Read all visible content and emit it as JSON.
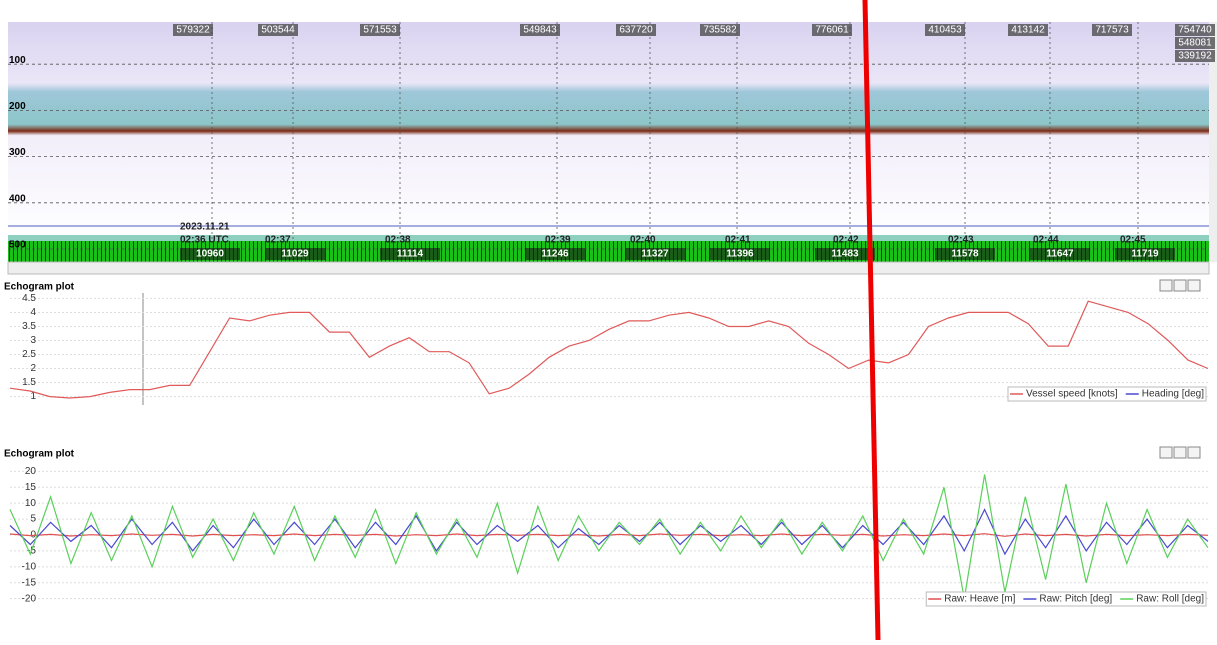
{
  "echogram": {
    "depth_ticks": [
      100,
      200,
      300,
      400,
      500
    ],
    "ylim": [
      0,
      500
    ],
    "date": "2023.11.21",
    "times": [
      "02:36 UTC",
      "02:37",
      "02:38",
      "02:39",
      "02:40",
      "02:41",
      "02:42",
      "02:43",
      "02:44",
      "02:45"
    ],
    "pings": [
      "10960",
      "11029",
      "11114",
      "11246",
      "11327",
      "11396",
      "11483",
      "11578",
      "11647",
      "11719"
    ],
    "top_labels": [
      "579322",
      "503544",
      "571553",
      "549843",
      "637720",
      "735582",
      "776061",
      "410453",
      "413142",
      "717573",
      "754740",
      "548081",
      "339192"
    ]
  },
  "chart_data": [
    {
      "type": "line",
      "title": "Echogram plot",
      "ylim": [
        0.7,
        4.8
      ],
      "yticks": [
        1,
        1.5,
        2,
        2.5,
        3,
        3.5,
        4,
        4.5
      ],
      "series": [
        {
          "name": "Vessel speed [knots]",
          "color": "#e05a5a",
          "values": [
            1.3,
            1.2,
            1.0,
            0.95,
            1.0,
            1.15,
            1.25,
            1.25,
            1.4,
            1.4,
            2.6,
            3.8,
            3.7,
            3.9,
            4.0,
            4.0,
            3.3,
            3.3,
            2.4,
            2.8,
            3.1,
            2.6,
            2.6,
            2.2,
            1.1,
            1.3,
            1.8,
            2.4,
            2.8,
            3.0,
            3.4,
            3.7,
            3.7,
            3.9,
            4.0,
            3.8,
            3.5,
            3.5,
            3.7,
            3.5,
            2.9,
            2.5,
            2.0,
            2.3,
            2.2,
            2.5,
            3.5,
            3.8,
            4.0,
            4.0,
            4.0,
            3.6,
            2.8,
            2.8,
            4.4,
            4.2,
            4.0,
            3.6,
            3.0,
            2.3,
            2.0
          ]
        },
        {
          "name": "Heading [deg]",
          "color": "#4a4ad0",
          "values": [
            null,
            null,
            null
          ]
        }
      ]
    },
    {
      "type": "line",
      "title": "Echogram plot",
      "ylim": [
        -22,
        22
      ],
      "yticks": [
        20,
        15,
        10,
        5,
        0,
        -5,
        -10,
        -15,
        -20
      ],
      "series": [
        {
          "name": "Raw: Heave [m]",
          "color": "#e05050",
          "values": [
            0.3,
            -0.2,
            0.2,
            -0.3,
            0.1,
            -0.2,
            0.3,
            -0.1,
            0.2,
            -0.3,
            0.2,
            -0.2,
            0.1,
            -0.2,
            0.3,
            -0.2,
            0.2,
            -0.1,
            0.2,
            -0.3,
            0.1,
            -0.2,
            0.3,
            -0.2,
            0.2,
            -0.1,
            0.2,
            -0.2,
            0.1,
            -0.3,
            0.2,
            -0.2,
            0.3,
            -0.1,
            0.2,
            -0.2,
            0.1,
            -0.2,
            0.3,
            -0.2,
            0.2,
            -0.1,
            0.2,
            -0.3,
            0.1,
            -0.2,
            0.3,
            -0.2,
            0.4,
            -0.4,
            0.3,
            -0.2,
            0.2,
            -0.3,
            0.2,
            -0.2,
            0.1,
            -0.2,
            0.2,
            -0.1
          ]
        },
        {
          "name": "Raw: Pitch [deg]",
          "color": "#4a4ad0",
          "values": [
            3,
            -3,
            4,
            -2,
            3,
            -4,
            5,
            -3,
            4,
            -5,
            3,
            -4,
            5,
            -3,
            4,
            -3,
            5,
            -4,
            4,
            -3,
            6,
            -5,
            4,
            -3,
            3,
            -2,
            3,
            -4,
            2,
            -3,
            3,
            -2,
            4,
            -3,
            3,
            -2,
            3,
            -3,
            4,
            -3,
            3,
            -4,
            3,
            -3,
            4,
            -3,
            6,
            -5,
            8,
            -6,
            5,
            -4,
            6,
            -5,
            4,
            -3,
            5,
            -4,
            3,
            -2
          ]
        },
        {
          "name": "Raw: Roll [deg]",
          "color": "#5ad05a",
          "values": [
            8,
            -6,
            12,
            -9,
            7,
            -8,
            6,
            -10,
            9,
            -7,
            5,
            -8,
            7,
            -6,
            9,
            -8,
            6,
            -7,
            8,
            -9,
            7,
            -6,
            5,
            -7,
            10,
            -12,
            9,
            -8,
            6,
            -5,
            4,
            -3,
            5,
            -6,
            4,
            -5,
            6,
            -4,
            5,
            -6,
            4,
            -5,
            6,
            -8,
            5,
            -6,
            15,
            -20,
            19,
            -18,
            12,
            -14,
            16,
            -15,
            10,
            -9,
            8,
            -7,
            5,
            -4
          ]
        }
      ]
    }
  ]
}
